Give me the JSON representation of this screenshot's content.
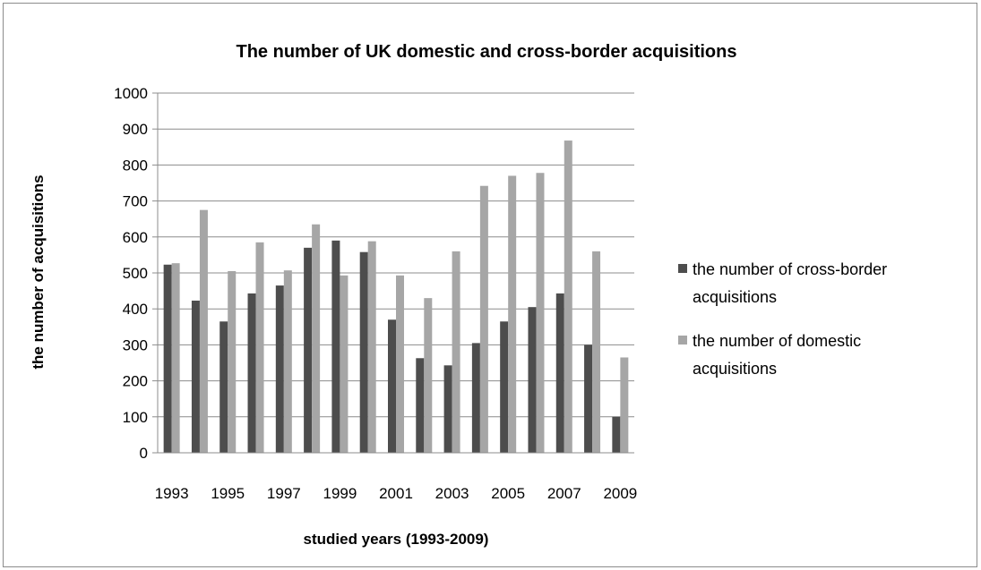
{
  "chart_data": {
    "type": "bar",
    "title": "The number of UK domestic and cross-border acquisitions",
    "xlabel": "studied years (1993-2009)",
    "ylabel": "the number of acquisitions",
    "ylim": [
      0,
      1000
    ],
    "y_ticks": [
      "0",
      "100",
      "200",
      "300",
      "400",
      "500",
      "600",
      "700",
      "800",
      "900",
      "1000"
    ],
    "categories": [
      "1993",
      "1994",
      "1995",
      "1996",
      "1997",
      "1998",
      "1999",
      "2000",
      "2001",
      "2002",
      "2003",
      "2004",
      "2005",
      "2006",
      "2007",
      "2008",
      "2009"
    ],
    "x_tick_labels": [
      "1993",
      "1995",
      "1997",
      "1999",
      "2001",
      "2003",
      "2005",
      "2007",
      "2009"
    ],
    "grid": true,
    "legend_position": "right",
    "series": [
      {
        "name": "the number of cross-border acquisitions",
        "legend_lines": [
          "the number of cross-border",
          "acquisitions"
        ],
        "color": "#4d4d4d",
        "values": [
          523,
          423,
          365,
          443,
          465,
          570,
          590,
          558,
          370,
          263,
          243,
          305,
          365,
          405,
          443,
          300,
          100
        ]
      },
      {
        "name": "the number of domestic acquisitions",
        "legend_lines": [
          "the number of domestic",
          "acquisitions"
        ],
        "color": "#a6a6a6",
        "values": [
          527,
          675,
          505,
          585,
          507,
          635,
          493,
          588,
          493,
          430,
          560,
          742,
          770,
          778,
          868,
          560,
          265
        ]
      }
    ]
  }
}
